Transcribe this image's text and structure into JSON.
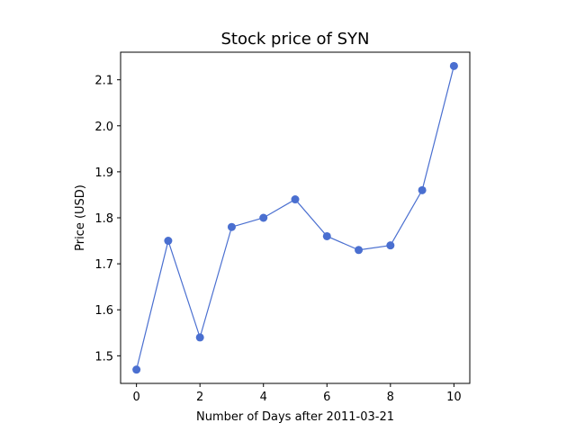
{
  "chart_data": {
    "type": "line",
    "title": "Stock price of SYN",
    "xlabel": "Number of Days after 2011-03-21",
    "ylabel": "Price (USD)",
    "x": [
      0,
      1,
      2,
      3,
      4,
      5,
      6,
      7,
      8,
      9,
      10
    ],
    "series": [
      {
        "name": "SYN",
        "values": [
          1.47,
          1.75,
          1.54,
          1.78,
          1.8,
          1.84,
          1.76,
          1.73,
          1.74,
          1.86,
          2.13
        ],
        "color": "#4a6fd0",
        "marker": "circle"
      }
    ],
    "xlim": [
      -0.5,
      10.5
    ],
    "ylim": [
      1.44,
      2.16
    ],
    "xticks": [
      0,
      2,
      4,
      6,
      8,
      10
    ],
    "xtick_labels": [
      "0",
      "2",
      "4",
      "6",
      "8",
      "10"
    ],
    "yticks": [
      1.5,
      1.6,
      1.7,
      1.8,
      1.9,
      2.0,
      2.1
    ],
    "ytick_labels": [
      "1.5",
      "1.6",
      "1.7",
      "1.8",
      "1.9",
      "2.0",
      "2.1"
    ],
    "grid": false,
    "legend": "none"
  }
}
